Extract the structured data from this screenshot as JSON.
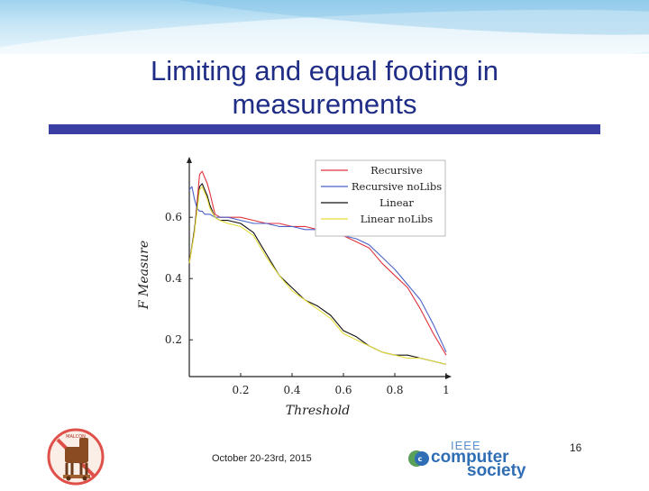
{
  "slide": {
    "title_line1": "Limiting and equal footing in",
    "title_line2": "measurements",
    "date": "October 20-23rd, 2015",
    "page_number": "16",
    "society_logo": {
      "line1": "IEEE",
      "line2": "computer",
      "line3": "society"
    },
    "left_logo_text": "MALCON"
  },
  "chart_data": {
    "type": "line",
    "xlabel": "Threshold",
    "ylabel": "F Measure",
    "xlim": [
      0,
      1
    ],
    "ylim": [
      0.08,
      0.78
    ],
    "xticks": [
      0.2,
      0.4,
      0.6,
      0.8,
      1
    ],
    "xtick_labels": [
      "0.2",
      "0.4",
      "0.6",
      "0.8",
      "1"
    ],
    "yticks": [
      0.2,
      0.4,
      0.6
    ],
    "ytick_labels": [
      "0.2",
      "0.4",
      "0.6"
    ],
    "grid": false,
    "legend_position": "top-right",
    "series": [
      {
        "name": "Recursive",
        "color": "#e0323c",
        "x": [
          0.0,
          0.02,
          0.04,
          0.05,
          0.06,
          0.07,
          0.08,
          0.1,
          0.12,
          0.15,
          0.2,
          0.25,
          0.3,
          0.35,
          0.4,
          0.45,
          0.5,
          0.55,
          0.6,
          0.65,
          0.7,
          0.75,
          0.8,
          0.85,
          0.9,
          0.95,
          1.0
        ],
        "y": [
          0.45,
          0.55,
          0.74,
          0.75,
          0.73,
          0.71,
          0.68,
          0.61,
          0.6,
          0.6,
          0.6,
          0.59,
          0.58,
          0.58,
          0.57,
          0.57,
          0.56,
          0.56,
          0.54,
          0.52,
          0.5,
          0.45,
          0.41,
          0.37,
          0.3,
          0.22,
          0.15
        ]
      },
      {
        "name": "Recursive noLibs",
        "color": "#4a62c8",
        "x": [
          0.0,
          0.01,
          0.02,
          0.03,
          0.04,
          0.05,
          0.06,
          0.08,
          0.1,
          0.12,
          0.15,
          0.2,
          0.25,
          0.3,
          0.35,
          0.4,
          0.45,
          0.5,
          0.55,
          0.6,
          0.65,
          0.7,
          0.75,
          0.8,
          0.85,
          0.9,
          0.95,
          1.0
        ],
        "y": [
          0.69,
          0.7,
          0.66,
          0.63,
          0.62,
          0.62,
          0.61,
          0.61,
          0.6,
          0.6,
          0.6,
          0.59,
          0.58,
          0.58,
          0.57,
          0.57,
          0.56,
          0.56,
          0.55,
          0.54,
          0.53,
          0.51,
          0.47,
          0.43,
          0.38,
          0.33,
          0.25,
          0.16
        ]
      },
      {
        "name": "Linear",
        "color": "#111111",
        "x": [
          0.0,
          0.02,
          0.04,
          0.05,
          0.06,
          0.07,
          0.08,
          0.1,
          0.12,
          0.15,
          0.2,
          0.25,
          0.3,
          0.35,
          0.4,
          0.45,
          0.5,
          0.55,
          0.6,
          0.65,
          0.7,
          0.75,
          0.8,
          0.85,
          0.9,
          0.95,
          1.0
        ],
        "y": [
          0.45,
          0.56,
          0.7,
          0.71,
          0.69,
          0.67,
          0.64,
          0.6,
          0.59,
          0.59,
          0.58,
          0.55,
          0.48,
          0.41,
          0.37,
          0.33,
          0.31,
          0.28,
          0.23,
          0.21,
          0.18,
          0.16,
          0.15,
          0.15,
          0.14,
          0.13,
          0.12
        ]
      },
      {
        "name": "Linear noLibs",
        "color": "#e6dc3c",
        "x": [
          0.0,
          0.02,
          0.04,
          0.05,
          0.06,
          0.07,
          0.08,
          0.1,
          0.12,
          0.15,
          0.2,
          0.25,
          0.3,
          0.35,
          0.4,
          0.45,
          0.5,
          0.55,
          0.6,
          0.65,
          0.7,
          0.75,
          0.8,
          0.85,
          0.9,
          0.95,
          1.0
        ],
        "y": [
          0.45,
          0.55,
          0.69,
          0.7,
          0.68,
          0.66,
          0.63,
          0.6,
          0.59,
          0.58,
          0.57,
          0.54,
          0.47,
          0.41,
          0.36,
          0.33,
          0.3,
          0.27,
          0.22,
          0.2,
          0.18,
          0.16,
          0.15,
          0.14,
          0.14,
          0.13,
          0.12
        ]
      }
    ]
  }
}
